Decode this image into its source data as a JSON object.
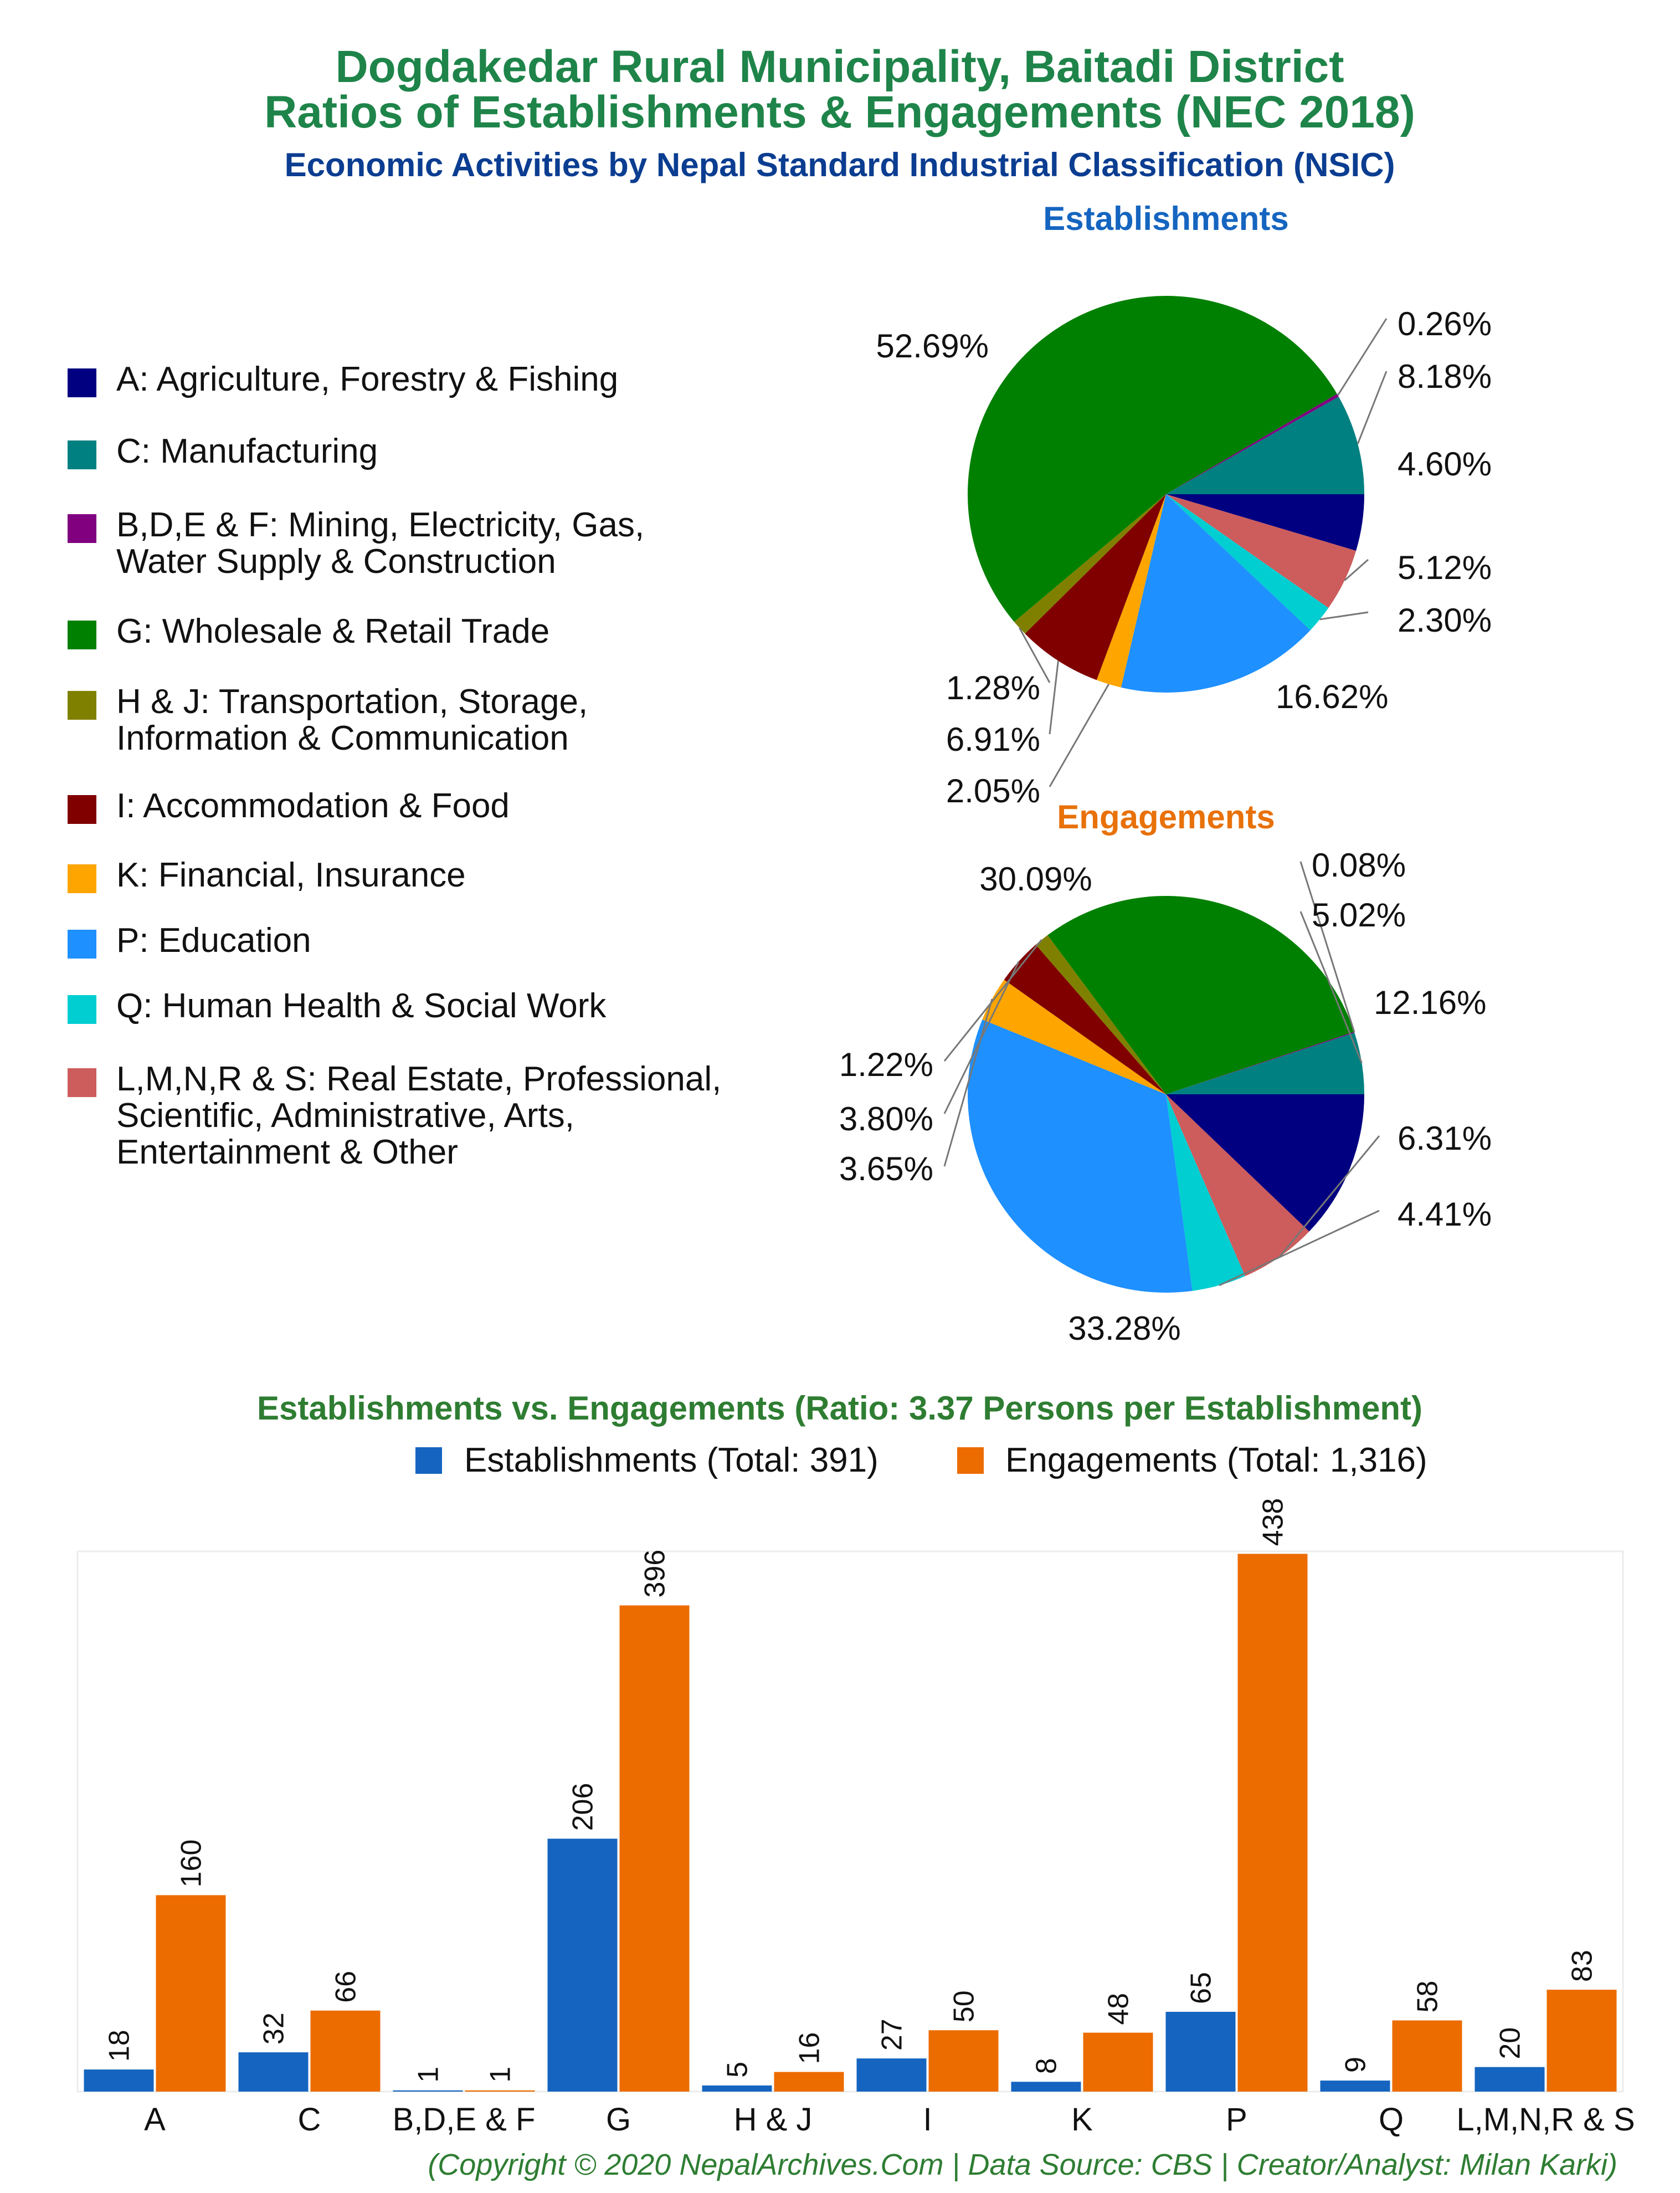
{
  "header": {
    "title_line1": "Dogdakedar Rural Municipality, Baitadi District",
    "title_line2": "Ratios of Establishments & Engagements (NEC 2018)",
    "subtitle": "Economic Activities by Nepal Standard Industrial Classification (NSIC)"
  },
  "colors": {
    "title_green": "#1e8449",
    "subtitle_blue": "#0b3d91",
    "est_title": "#1565c0",
    "eng_title": "#e8710a",
    "bar_est": "#1565c0",
    "bar_eng": "#ec6c00",
    "copyright_green": "#2e7d32"
  },
  "legend": {
    "items": [
      {
        "label": "A: Agriculture, Forestry & Fishing",
        "color": "#000080"
      },
      {
        "label": "C: Manufacturing",
        "color": "#008080"
      },
      {
        "label": "B,D,E & F: Mining, Electricity, Gas,\nWater Supply & Construction",
        "color": "#800080"
      },
      {
        "label": "G: Wholesale & Retail Trade",
        "color": "#008000"
      },
      {
        "label": "H & J: Transportation, Storage,\nInformation & Communication",
        "color": "#808000"
      },
      {
        "label": "I: Accommodation & Food",
        "color": "#800000"
      },
      {
        "label": "K: Financial, Insurance",
        "color": "#ffa500"
      },
      {
        "label": "P: Education",
        "color": "#1e90ff"
      },
      {
        "label": "Q: Human Health & Social Work",
        "color": "#00ced1"
      },
      {
        "label": "L,M,N,R & S: Real Estate, Professional,\nScientific, Administrative, Arts,\nEntertainment & Other",
        "color": "#cd5c5c"
      }
    ]
  },
  "chart_data": [
    {
      "type": "pie",
      "title": "Establishments",
      "slices": [
        {
          "category": "A",
          "value": 4.6,
          "label": "4.60%"
        },
        {
          "category": "L,M,N,R & S",
          "value": 5.12,
          "label": "5.12%"
        },
        {
          "category": "Q",
          "value": 2.3,
          "label": "2.30%"
        },
        {
          "category": "P",
          "value": 16.62,
          "label": "16.62%"
        },
        {
          "category": "K",
          "value": 2.05,
          "label": "2.05%"
        },
        {
          "category": "I",
          "value": 6.91,
          "label": "6.91%"
        },
        {
          "category": "H & J",
          "value": 1.28,
          "label": "1.28%"
        },
        {
          "category": "G",
          "value": 52.69,
          "label": "52.69%"
        },
        {
          "category": "B,D,E & F",
          "value": 0.26,
          "label": "0.26%"
        },
        {
          "category": "C",
          "value": 8.18,
          "label": "8.18%"
        }
      ]
    },
    {
      "type": "pie",
      "title": "Engagements",
      "slices": [
        {
          "category": "A",
          "value": 12.16,
          "label": "12.16%"
        },
        {
          "category": "L,M,N,R & S",
          "value": 6.31,
          "label": "6.31%"
        },
        {
          "category": "Q",
          "value": 4.41,
          "label": "4.41%"
        },
        {
          "category": "P",
          "value": 33.28,
          "label": "33.28%"
        },
        {
          "category": "K",
          "value": 3.65,
          "label": "3.65%"
        },
        {
          "category": "I",
          "value": 3.8,
          "label": "3.80%"
        },
        {
          "category": "H & J",
          "value": 1.22,
          "label": "1.22%"
        },
        {
          "category": "G",
          "value": 30.09,
          "label": "30.09%"
        },
        {
          "category": "B,D,E & F",
          "value": 0.08,
          "label": "0.08%"
        },
        {
          "category": "C",
          "value": 5.02,
          "label": "5.02%"
        }
      ]
    },
    {
      "type": "bar",
      "title": "Establishments vs. Engagements (Ratio: 3.37 Persons per Establishment)",
      "categories": [
        "A",
        "C",
        "B,D,E & F",
        "G",
        "H & J",
        "I",
        "K",
        "P",
        "Q",
        "L,M,N,R & S"
      ],
      "series": [
        {
          "name": "Establishments (Total: 391)",
          "values": [
            18,
            32,
            1,
            206,
            5,
            27,
            8,
            65,
            9,
            20
          ]
        },
        {
          "name": "Engagements (Total: 1,316)",
          "values": [
            160,
            66,
            1,
            396,
            16,
            50,
            48,
            438,
            58,
            83
          ]
        }
      ],
      "ylim": [
        0,
        440
      ],
      "grid": false,
      "legend_position": "top"
    }
  ],
  "footer": {
    "copyright": "(Copyright © 2020 NepalArchives.Com | Data Source: CBS | Creator/Analyst: Milan Karki)"
  }
}
